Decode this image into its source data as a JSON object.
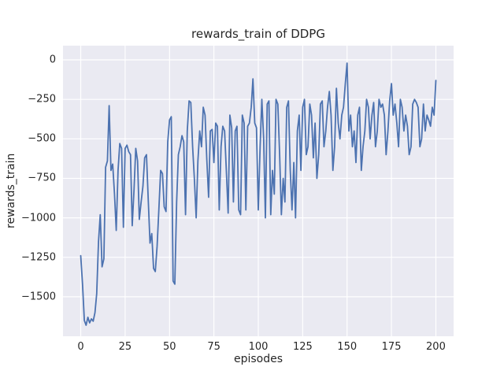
{
  "figure": {
    "title": "rewards_train of DDPG",
    "xlabel": "episodes",
    "ylabel": "rewards_train"
  },
  "chart_data": {
    "type": "line",
    "title": "rewards_train of DDPG",
    "xlabel": "episodes",
    "ylabel": "rewards_train",
    "x_ticks": [
      0,
      25,
      50,
      75,
      100,
      125,
      150,
      175,
      200
    ],
    "y_ticks": [
      0,
      -250,
      -500,
      -750,
      -1000,
      -1250,
      -1500
    ],
    "xlim": [
      -10,
      210
    ],
    "ylim": [
      -1750,
      90
    ],
    "grid": true,
    "legend_position": "none",
    "line_color": "#4c72b0",
    "plot_background_color": "#eaeaf2",
    "grid_color": "#ffffff",
    "series": [
      {
        "name": "rewards_train",
        "x_start": 0,
        "x_step": 1,
        "values": [
          -1240,
          -1420,
          -1650,
          -1680,
          -1630,
          -1665,
          -1640,
          -1655,
          -1600,
          -1480,
          -1150,
          -980,
          -1310,
          -1260,
          -680,
          -640,
          -290,
          -700,
          -660,
          -850,
          -1080,
          -700,
          -530,
          -560,
          -1060,
          -560,
          -540,
          -580,
          -600,
          -1050,
          -820,
          -560,
          -640,
          -1010,
          -900,
          -800,
          -620,
          -600,
          -880,
          -1160,
          -1100,
          -1320,
          -1340,
          -1180,
          -950,
          -700,
          -720,
          -930,
          -960,
          -520,
          -380,
          -360,
          -1400,
          -1420,
          -900,
          -600,
          -550,
          -480,
          -520,
          -980,
          -450,
          -260,
          -270,
          -550,
          -750,
          -1000,
          -640,
          -450,
          -550,
          -300,
          -350,
          -630,
          -870,
          -450,
          -440,
          -650,
          -400,
          -420,
          -950,
          -550,
          -420,
          -450,
          -700,
          -970,
          -350,
          -430,
          -900,
          -450,
          -420,
          -950,
          -980,
          -350,
          -400,
          -950,
          -420,
          -400,
          -300,
          -120,
          -400,
          -430,
          -950,
          -550,
          -250,
          -500,
          -1000,
          -280,
          -260,
          -980,
          -700,
          -850,
          -250,
          -280,
          -600,
          -980,
          -750,
          -900,
          -300,
          -260,
          -700,
          -950,
          -650,
          -1000,
          -450,
          -350,
          -700,
          -300,
          -250,
          -600,
          -550,
          -280,
          -350,
          -620,
          -400,
          -750,
          -600,
          -280,
          -260,
          -550,
          -450,
          -300,
          -200,
          -350,
          -700,
          -550,
          -180,
          -400,
          -500,
          -350,
          -300,
          -150,
          -20,
          -450,
          -350,
          -550,
          -450,
          -650,
          -350,
          -300,
          -700,
          -550,
          -450,
          -250,
          -300,
          -500,
          -350,
          -270,
          -550,
          -450,
          -250,
          -300,
          -280,
          -350,
          -600,
          -450,
          -260,
          -150,
          -350,
          -280,
          -400,
          -550,
          -250,
          -300,
          -450,
          -350,
          -420,
          -600,
          -550,
          -280,
          -250,
          -270,
          -300,
          -550,
          -500,
          -280,
          -450,
          -350,
          -380,
          -420,
          -300,
          -350,
          -130
        ]
      }
    ]
  }
}
